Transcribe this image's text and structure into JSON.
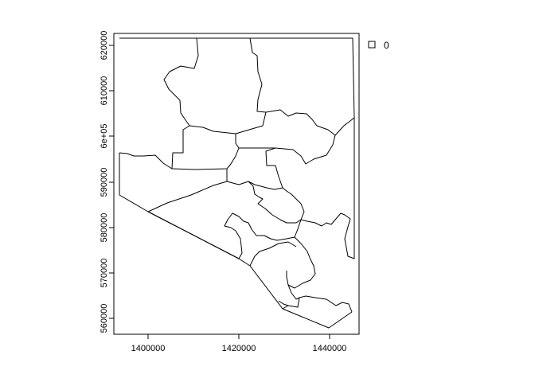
{
  "map": {
    "x_ticks": [
      "1400000",
      "1420000",
      "1440000"
    ],
    "y_ticks": [
      "560000",
      "570000",
      "580000",
      "590000",
      "6e+05",
      "610000",
      "620000"
    ],
    "legend": {
      "label": "0"
    }
  },
  "colors": {
    "axes": "#000000",
    "boundary": "#000000",
    "background": "#ffffff"
  }
}
